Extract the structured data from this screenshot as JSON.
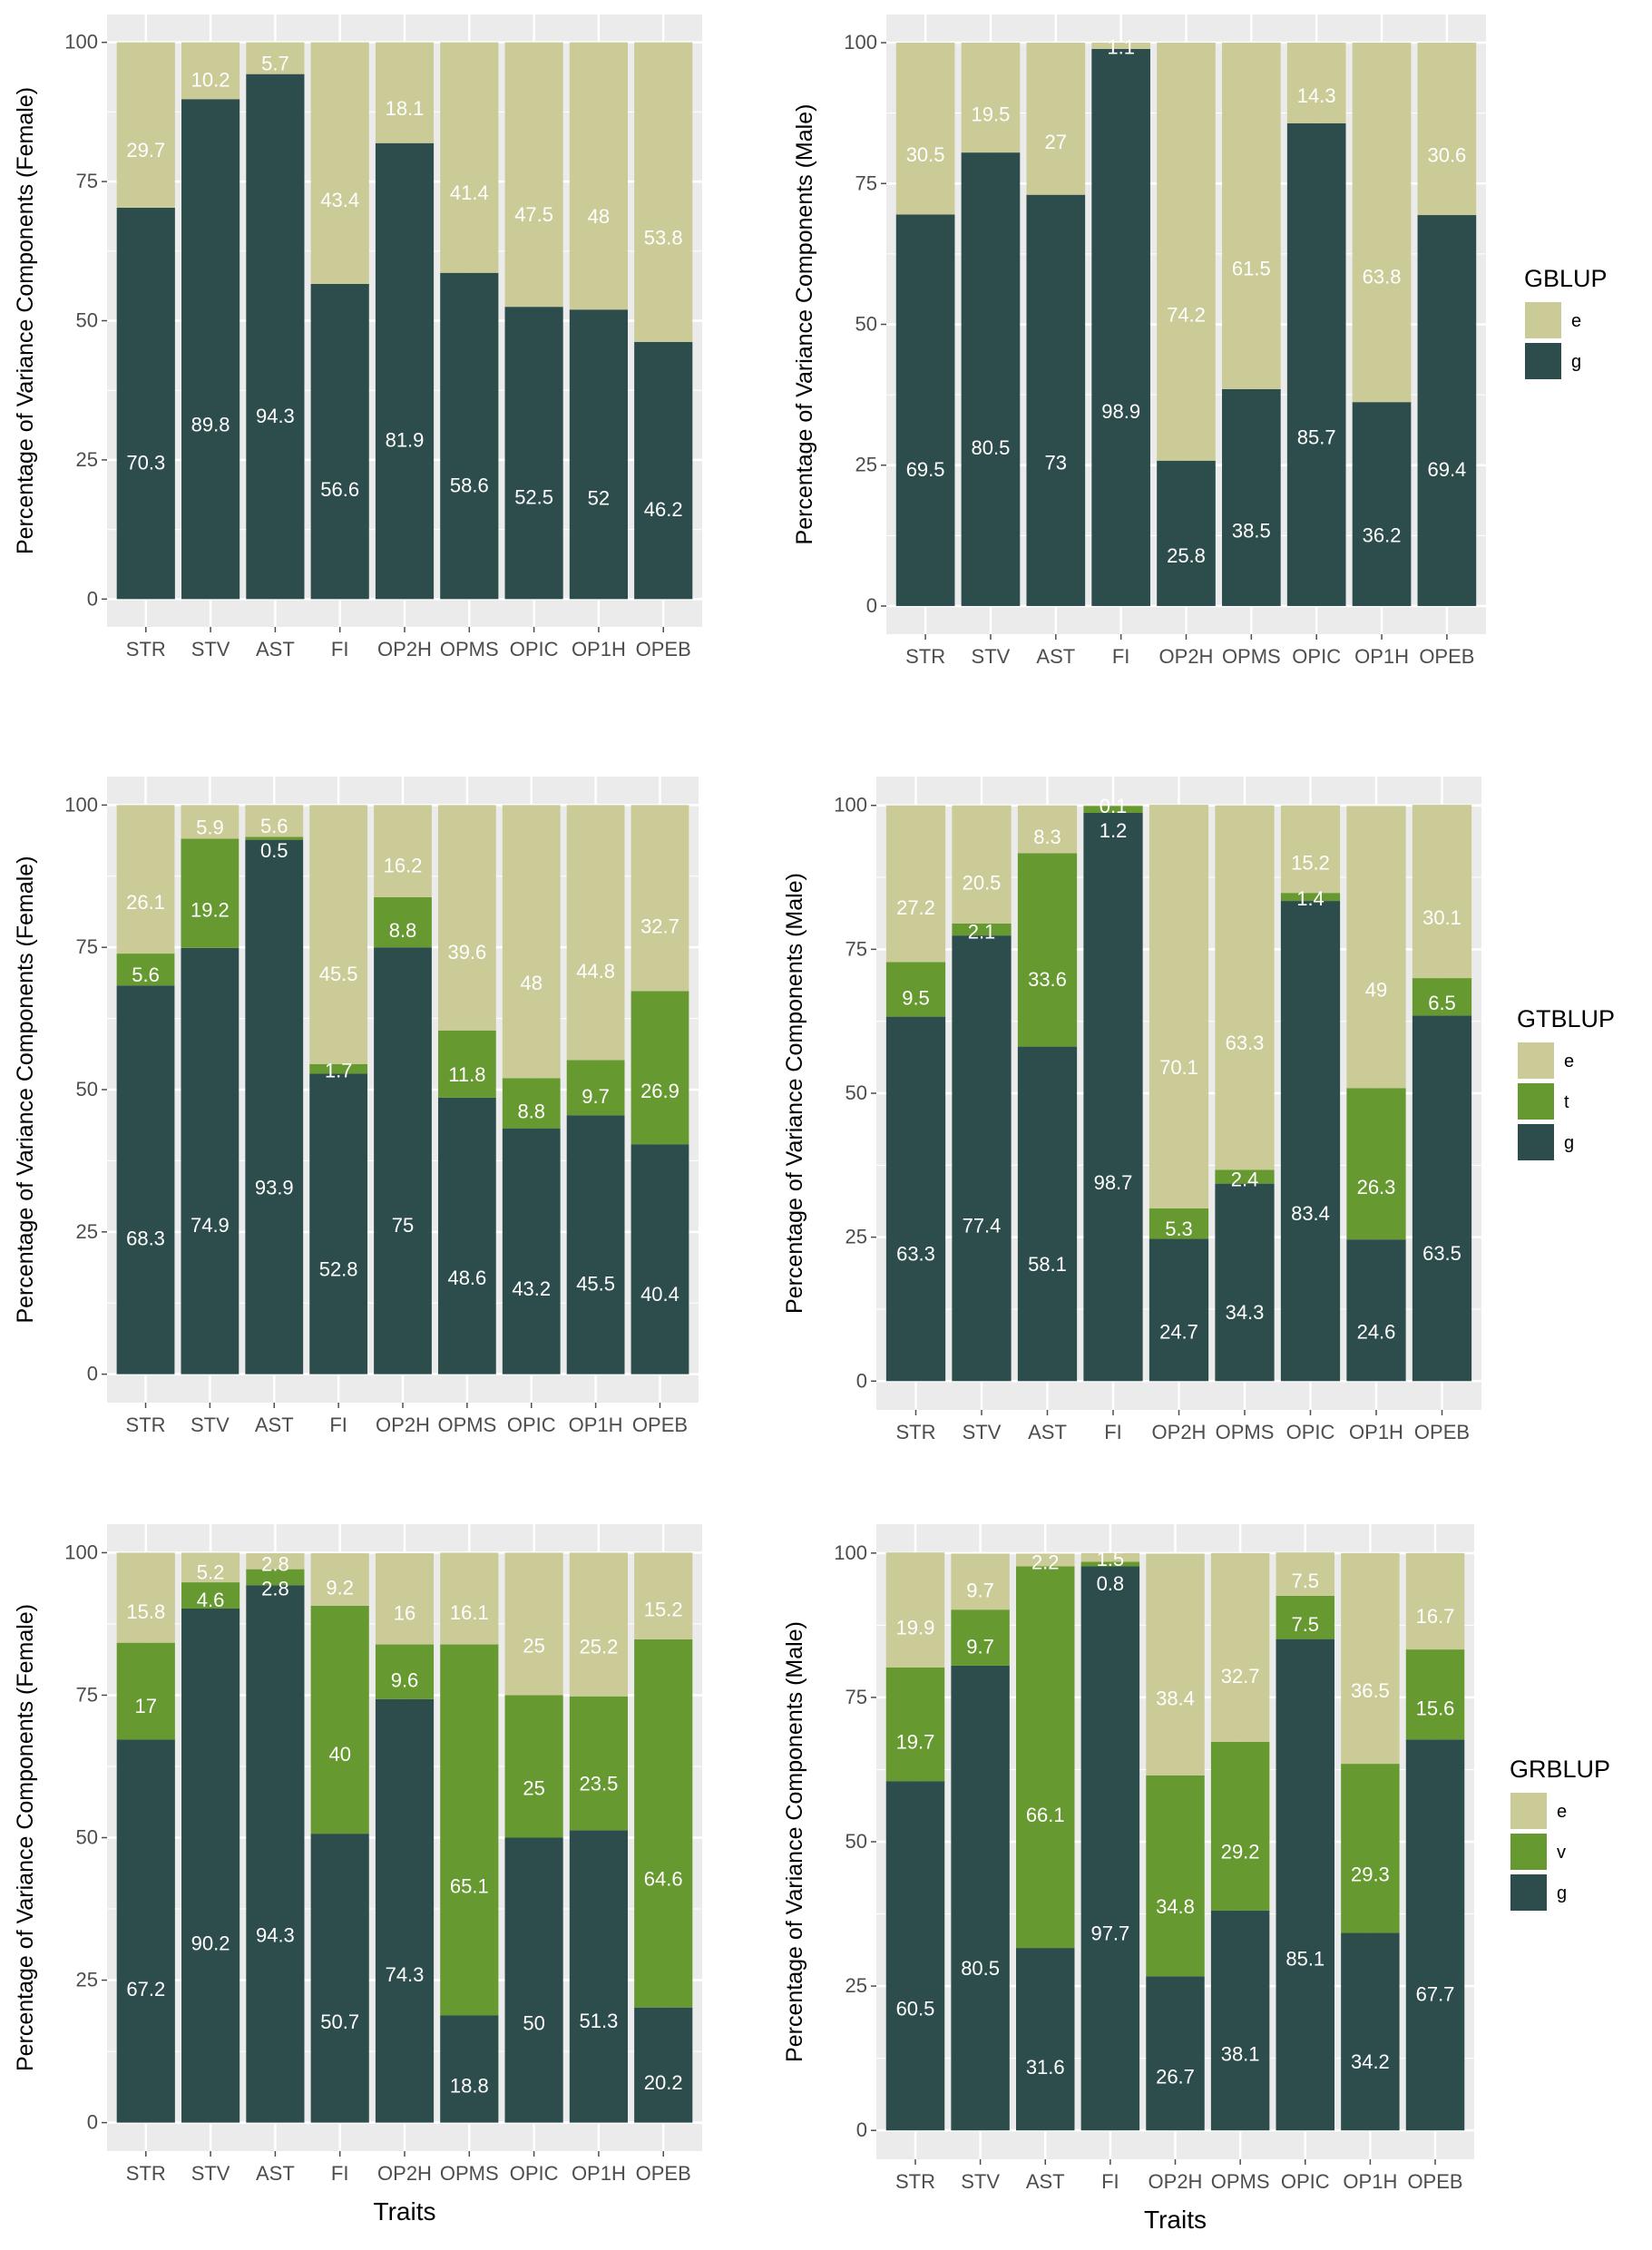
{
  "colors": {
    "e": "#cbcb98",
    "t": "#66992f",
    "v": "#66992f",
    "g": "#2d4d4d",
    "panel": "#ebebeb",
    "grid": "#ffffff"
  },
  "chart_data": [
    {
      "type": "bar",
      "stacked": true,
      "title": "",
      "xlabel": "",
      "ylabel": "Percentage of Variance Components (Female)",
      "ylim": [
        0,
        100
      ],
      "yticks": [
        "0",
        "25",
        "50",
        "75",
        "100"
      ],
      "legend": null,
      "categories": [
        "STR",
        "STV",
        "AST",
        "FI",
        "OP2H",
        "OPMS",
        "OPIC",
        "OP1H",
        "OPEB"
      ],
      "series": [
        {
          "name": "g",
          "values": [
            70.3,
            89.8,
            94.3,
            56.6,
            81.9,
            58.6,
            52.5,
            52,
            46.2
          ]
        },
        {
          "name": "e",
          "values": [
            29.7,
            10.2,
            5.7,
            43.4,
            18.1,
            41.4,
            47.5,
            48,
            53.8
          ]
        }
      ]
    },
    {
      "type": "bar",
      "stacked": true,
      "title": "",
      "xlabel": "",
      "ylabel": "Percentage of Variance Components (Male)",
      "ylim": [
        0,
        100
      ],
      "yticks": [
        "0",
        "25",
        "50",
        "75",
        "100"
      ],
      "legend": {
        "title": "GBLUP",
        "keys": [
          "e",
          "g"
        ],
        "placement": "right"
      },
      "categories": [
        "STR",
        "STV",
        "AST",
        "FI",
        "OP2H",
        "OPMS",
        "OPIC",
        "OP1H",
        "OPEB"
      ],
      "series": [
        {
          "name": "g",
          "values": [
            69.5,
            80.5,
            73,
            98.9,
            25.8,
            38.5,
            85.7,
            36.2,
            69.4
          ]
        },
        {
          "name": "e",
          "values": [
            30.5,
            19.5,
            27,
            1.1,
            74.2,
            61.5,
            14.3,
            63.8,
            30.6
          ]
        }
      ]
    },
    {
      "type": "bar",
      "stacked": true,
      "title": "",
      "xlabel": "",
      "ylabel": "Percentage of Variance Components (Female)",
      "ylim": [
        0,
        100
      ],
      "yticks": [
        "0",
        "25",
        "50",
        "75",
        "100"
      ],
      "legend": null,
      "categories": [
        "STR",
        "STV",
        "AST",
        "FI",
        "OP2H",
        "OPMS",
        "OPIC",
        "OP1H",
        "OPEB"
      ],
      "series": [
        {
          "name": "g",
          "values": [
            68.3,
            74.9,
            93.9,
            52.8,
            75,
            48.6,
            43.2,
            45.5,
            40.4
          ]
        },
        {
          "name": "t",
          "values": [
            5.6,
            19.2,
            0.5,
            1.7,
            8.8,
            11.8,
            8.8,
            9.7,
            26.9
          ]
        },
        {
          "name": "e",
          "values": [
            26.1,
            5.9,
            5.6,
            45.5,
            16.2,
            39.6,
            48,
            44.8,
            32.7
          ]
        }
      ]
    },
    {
      "type": "bar",
      "stacked": true,
      "title": "",
      "xlabel": "",
      "ylabel": "Percentage of Variance Components (Male)",
      "ylim": [
        0,
        100
      ],
      "yticks": [
        "0",
        "25",
        "50",
        "75",
        "100"
      ],
      "legend": {
        "title": "GTBLUP",
        "keys": [
          "e",
          "t",
          "g"
        ],
        "placement": "right"
      },
      "categories": [
        "STR",
        "STV",
        "AST",
        "FI",
        "OP2H",
        "OPMS",
        "OPIC",
        "OP1H",
        "OPEB"
      ],
      "series": [
        {
          "name": "g",
          "values": [
            63.3,
            77.4,
            58.1,
            98.7,
            24.7,
            34.3,
            83.4,
            24.6,
            63.5
          ]
        },
        {
          "name": "t",
          "values": [
            9.5,
            2.1,
            33.6,
            1.2,
            5.3,
            2.4,
            1.4,
            26.3,
            6.5
          ]
        },
        {
          "name": "e",
          "values": [
            27.2,
            20.5,
            8.3,
            0.1,
            70.1,
            63.3,
            15.2,
            49,
            30.1
          ]
        }
      ]
    },
    {
      "type": "bar",
      "stacked": true,
      "title": "",
      "xlabel": "Traits",
      "ylabel": "Percentage of Variance Components (Female)",
      "ylim": [
        0,
        100
      ],
      "yticks": [
        "0",
        "25",
        "50",
        "75",
        "100"
      ],
      "legend": null,
      "categories": [
        "STR",
        "STV",
        "AST",
        "FI",
        "OP2H",
        "OPMS",
        "OPIC",
        "OP1H",
        "OPEB"
      ],
      "series": [
        {
          "name": "g",
          "values": [
            67.2,
            90.2,
            94.3,
            50.7,
            74.3,
            18.8,
            50,
            51.3,
            20.2
          ]
        },
        {
          "name": "v",
          "values": [
            17,
            4.6,
            2.8,
            40,
            9.6,
            65.1,
            25,
            23.5,
            64.6
          ]
        },
        {
          "name": "e",
          "values": [
            15.8,
            5.2,
            2.8,
            9.2,
            16,
            16.1,
            25,
            25.2,
            15.2
          ]
        }
      ]
    },
    {
      "type": "bar",
      "stacked": true,
      "title": "",
      "xlabel": "Traits",
      "ylabel": "Percentage of Variance Components (Male)",
      "ylim": [
        0,
        100
      ],
      "yticks": [
        "0",
        "25",
        "50",
        "75",
        "100"
      ],
      "legend": {
        "title": "GRBLUP",
        "keys": [
          "e",
          "v",
          "g"
        ],
        "placement": "right"
      },
      "categories": [
        "STR",
        "STV",
        "AST",
        "FI",
        "OP2H",
        "OPMS",
        "OPIC",
        "OP1H",
        "OPEB"
      ],
      "series": [
        {
          "name": "g",
          "values": [
            60.5,
            80.5,
            31.6,
            97.7,
            26.7,
            38.1,
            85.1,
            34.2,
            67.7
          ]
        },
        {
          "name": "v",
          "values": [
            19.7,
            9.7,
            66.1,
            0.8,
            34.8,
            29.2,
            7.5,
            29.3,
            15.6
          ]
        },
        {
          "name": "e",
          "values": [
            19.9,
            9.7,
            2.2,
            1.5,
            38.4,
            32.7,
            7.5,
            36.5,
            16.7
          ]
        }
      ]
    }
  ]
}
